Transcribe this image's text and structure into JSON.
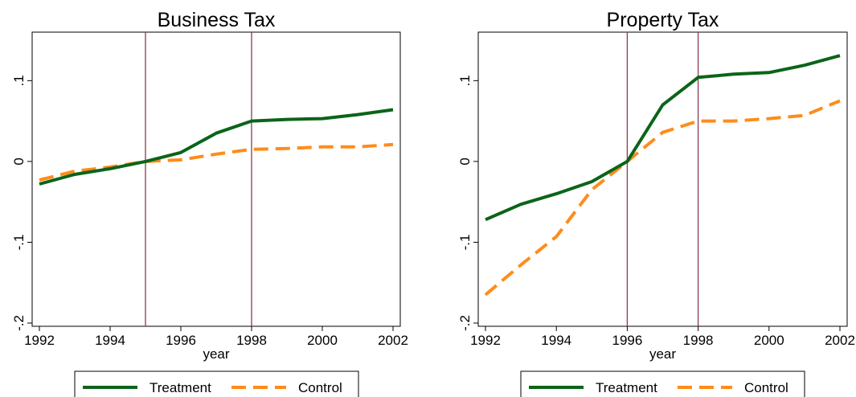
{
  "chart_data": [
    {
      "type": "line",
      "title": "Business Tax",
      "xlabel": "year",
      "ylabel": "",
      "xlim": [
        1992,
        2002
      ],
      "ylim": [
        -0.2,
        0.16
      ],
      "xticks": [
        1992,
        1994,
        1996,
        1998,
        2000,
        2002
      ],
      "yticks": [
        -0.2,
        -0.1,
        0,
        0.1
      ],
      "ytick_labels": [
        "-.2",
        "-.1",
        "0",
        ".1"
      ],
      "vlines": [
        1995,
        1998
      ],
      "x": [
        1992,
        1993,
        1994,
        1995,
        1996,
        1997,
        1998,
        1999,
        2000,
        2001,
        2002
      ],
      "series": [
        {
          "name": "Treatment",
          "values": [
            -0.028,
            -0.016,
            -0.009,
            0.0,
            0.011,
            0.035,
            0.05,
            0.052,
            0.053,
            0.058,
            0.064
          ]
        },
        {
          "name": "Control",
          "values": [
            -0.023,
            -0.012,
            -0.007,
            0.0,
            0.002,
            0.009,
            0.015,
            0.016,
            0.018,
            0.018,
            0.021
          ]
        }
      ],
      "grid": false,
      "legend": "bottom"
    },
    {
      "type": "line",
      "title": "Property Tax",
      "xlabel": "year",
      "ylabel": "",
      "xlim": [
        1992,
        2002
      ],
      "ylim": [
        -0.2,
        0.16
      ],
      "xticks": [
        1992,
        1994,
        1996,
        1998,
        2000,
        2002
      ],
      "yticks": [
        -0.2,
        -0.1,
        0,
        0.1
      ],
      "ytick_labels": [
        "-.2",
        "-.1",
        "0",
        ".1"
      ],
      "vlines": [
        1996,
        1998
      ],
      "x": [
        1992,
        1993,
        1994,
        1995,
        1996,
        1997,
        1998,
        1999,
        2000,
        2001,
        2002
      ],
      "series": [
        {
          "name": "Treatment",
          "values": [
            -0.072,
            -0.053,
            -0.04,
            -0.025,
            0.0,
            0.07,
            0.104,
            0.108,
            0.11,
            0.119,
            0.131
          ]
        },
        {
          "name": "Control",
          "values": [
            -0.165,
            -0.128,
            -0.093,
            -0.035,
            0.0,
            0.036,
            0.05,
            0.05,
            0.053,
            0.057,
            0.075
          ]
        }
      ],
      "grid": false,
      "legend": "bottom"
    }
  ],
  "colors": {
    "Treatment": "#0b6419",
    "Control": "#ff8c1a",
    "vline": "#8c3a50",
    "axis": "#000000"
  }
}
